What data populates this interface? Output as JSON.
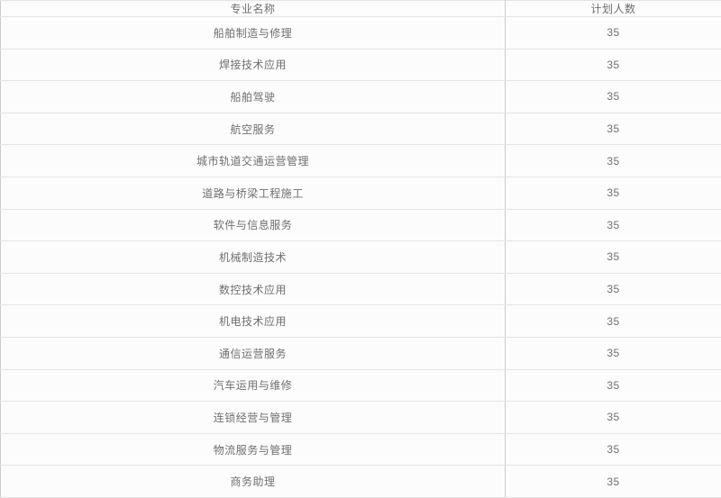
{
  "colors": {
    "cell_background": "#fcfcfc",
    "horizontal_border": "#e4e4e4",
    "vertical_border": "#cccccc",
    "text": "#6f6f6f"
  },
  "table": {
    "headers": [
      "专业名称",
      "计划人数"
    ],
    "rows": [
      {
        "major": "船舶制造与修理",
        "count": "35"
      },
      {
        "major": "焊接技术应用",
        "count": "35"
      },
      {
        "major": "船舶驾驶",
        "count": "35"
      },
      {
        "major": "航空服务",
        "count": "35"
      },
      {
        "major": "城市轨道交通运营管理",
        "count": "35"
      },
      {
        "major": "道路与桥梁工程施工",
        "count": "35"
      },
      {
        "major": "软件与信息服务",
        "count": "35"
      },
      {
        "major": "机械制造技术",
        "count": "35"
      },
      {
        "major": "数控技术应用",
        "count": "35"
      },
      {
        "major": "机电技术应用",
        "count": "35"
      },
      {
        "major": "通信运营服务",
        "count": "35"
      },
      {
        "major": "汽车运用与维修",
        "count": "35"
      },
      {
        "major": "连锁经营与管理",
        "count": "35"
      },
      {
        "major": "物流服务与管理",
        "count": "35"
      },
      {
        "major": "商务助理",
        "count": "35"
      }
    ]
  }
}
